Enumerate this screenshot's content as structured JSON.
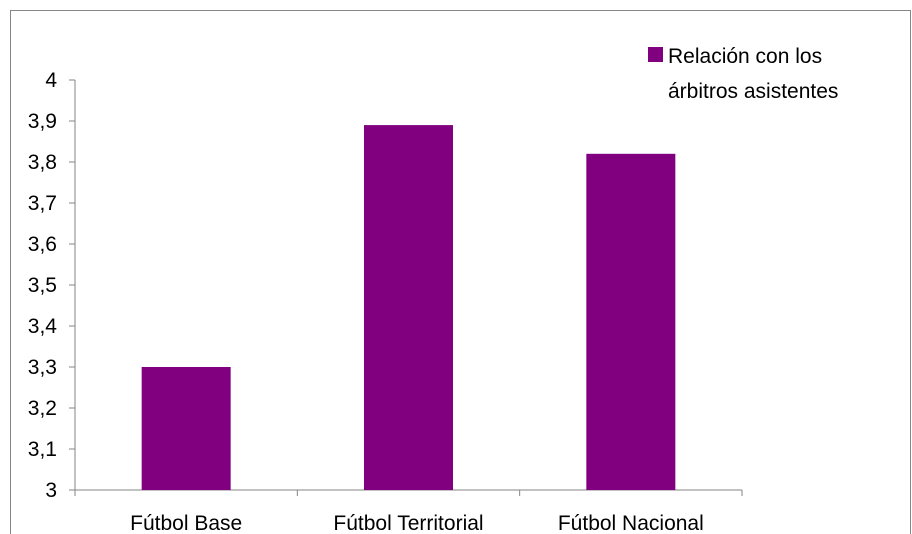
{
  "chart_data": {
    "type": "bar",
    "categories": [
      "Fútbol Base",
      "Fútbol Territorial",
      "Fútbol Nacional"
    ],
    "series": [
      {
        "name": "Relación con los árbitros asistentes",
        "values": [
          3.3,
          3.89,
          3.82
        ],
        "color": "#800080"
      }
    ],
    "y_ticks": [
      "3",
      "3,1",
      "3,2",
      "3,3",
      "3,4",
      "3,5",
      "3,6",
      "3,7",
      "3,8",
      "3,9",
      "4"
    ],
    "ylim": [
      3,
      4
    ],
    "grid": false,
    "legend": {
      "position": "top-right",
      "lines": [
        "Relación con los",
        "árbitros asistentes"
      ]
    },
    "title": "",
    "xlabel": "",
    "ylabel": ""
  }
}
